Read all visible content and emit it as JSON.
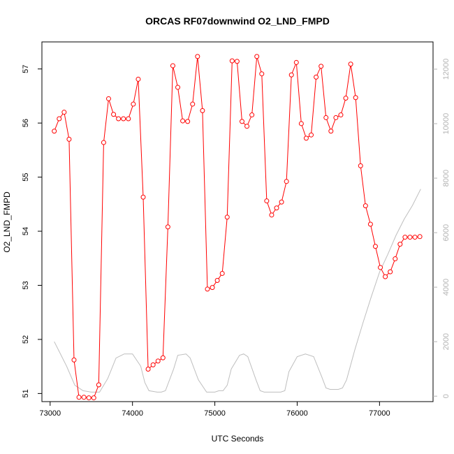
{
  "chart_data": {
    "type": "line",
    "title": "ORCAS RF07downwind O2_LND_FMPD",
    "xlabel": "UTC Seconds",
    "ylabel": "O2_LND_FMPD",
    "xlim": [
      72900,
      77650
    ],
    "ylim": [
      50.85,
      57.5
    ],
    "y2lim": [
      -200,
      13000
    ],
    "x_ticks": [
      "73000",
      "74000",
      "75000",
      "76000",
      "77000"
    ],
    "y_ticks": [
      "51",
      "52",
      "53",
      "54",
      "55",
      "56",
      "57"
    ],
    "y2_ticks": [
      "0",
      "2000",
      "4000",
      "6000",
      "8000",
      "10000",
      "12000"
    ],
    "series": [
      {
        "color": "#ff0000",
        "style": "line+points",
        "x": [
          73050,
          73110,
          73170,
          73230,
          73290,
          73350,
          73410,
          73470,
          73530,
          73590,
          73650,
          73710,
          73770,
          73830,
          73890,
          73950,
          74010,
          74070,
          74130,
          74190,
          74250,
          74310,
          74370,
          74430,
          74490,
          74550,
          74610,
          74670,
          74730,
          74790,
          74850,
          74910,
          74970,
          75030,
          75090,
          75150,
          75210,
          75270,
          75330,
          75390,
          75450,
          75510,
          75570,
          75630,
          75690,
          75750,
          75810,
          75870,
          75930,
          75990,
          76050,
          76110,
          76170,
          76230,
          76290,
          76350,
          76410,
          76470,
          76530,
          76590,
          76650,
          76710,
          76770,
          76830,
          76890,
          76950,
          77010,
          77070,
          77130,
          77190,
          77250,
          77310,
          77370,
          77430,
          77490
        ],
        "y": [
          55.85,
          56.08,
          56.2,
          55.7,
          51.62,
          50.93,
          50.93,
          50.92,
          50.92,
          51.16,
          55.64,
          56.45,
          56.16,
          56.08,
          56.08,
          56.08,
          56.35,
          56.81,
          54.63,
          51.45,
          51.53,
          51.6,
          51.66,
          54.08,
          57.06,
          56.66,
          56.04,
          56.03,
          56.35,
          57.23,
          56.23,
          52.93,
          52.96,
          53.09,
          53.22,
          54.26,
          57.15,
          57.14,
          56.03,
          55.94,
          56.15,
          57.23,
          56.91,
          54.56,
          54.3,
          54.43,
          54.54,
          54.92,
          56.89,
          57.12,
          55.99,
          55.72,
          55.78,
          56.85,
          57.05,
          56.1,
          55.85,
          56.1,
          56.15,
          56.46,
          57.09,
          56.47,
          55.21,
          54.47,
          54.13,
          53.72,
          53.33,
          53.16,
          53.25,
          53.49,
          53.76,
          53.89,
          53.89,
          53.89,
          53.9
        ]
      },
      {
        "color": "#bebebe",
        "style": "line",
        "axis": "right",
        "x": [
          73050,
          73200,
          73300,
          73400,
          73500,
          73600,
          73700,
          73800,
          73900,
          74000,
          74100,
          74150,
          74200,
          74300,
          74350,
          74400,
          74500,
          74550,
          74650,
          74700,
          74800,
          74900,
          75000,
          75050,
          75100,
          75150,
          75200,
          75300,
          75350,
          75400,
          75500,
          75550,
          75600,
          75700,
          75800,
          75850,
          75900,
          76000,
          76100,
          76200,
          76300,
          76350,
          76400,
          76500,
          76550,
          76600,
          76700,
          76800,
          76900,
          77000,
          77100,
          77200,
          77300,
          77400,
          77500
        ],
        "y": [
          2000,
          1100,
          400,
          200,
          150,
          150,
          650,
          1400,
          1550,
          1550,
          1100,
          500,
          200,
          150,
          150,
          200,
          1000,
          1500,
          1550,
          1400,
          600,
          150,
          150,
          200,
          200,
          400,
          1000,
          1500,
          1550,
          1450,
          600,
          200,
          150,
          150,
          150,
          200,
          900,
          1450,
          1550,
          1450,
          700,
          300,
          250,
          250,
          300,
          600,
          1700,
          2700,
          3650,
          4550,
          5200,
          5900,
          6500,
          7000,
          7600
        ]
      }
    ]
  }
}
